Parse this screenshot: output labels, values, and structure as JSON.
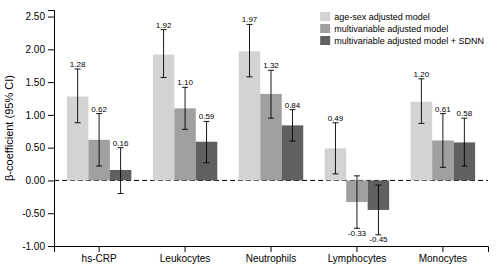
{
  "chart_data": {
    "type": "bar",
    "categories": [
      "hs-CRP",
      "Leukocytes",
      "Neutrophils",
      "Lymphocytes",
      "Monocytes"
    ],
    "series": [
      {
        "name": "age-sex adjusted model",
        "color": "#d3d3d3",
        "values": [
          1.28,
          1.92,
          1.97,
          0.49,
          1.2
        ],
        "value_labels": [
          "1.28",
          "1.92",
          "1.97",
          "0.49",
          "1.20"
        ],
        "ci_lower": [
          0.88,
          1.57,
          1.58,
          0.1,
          0.87
        ],
        "ci_upper": [
          1.7,
          2.3,
          2.38,
          0.88,
          1.55
        ]
      },
      {
        "name": "multivariable adjusted model",
        "color": "#a0a0a0",
        "values": [
          0.62,
          1.1,
          1.32,
          -0.33,
          0.61
        ],
        "value_labels": [
          "0.62",
          "1.10",
          "1.32",
          "-0.33",
          "0.61"
        ],
        "ci_lower": [
          0.22,
          0.78,
          0.95,
          -0.73,
          0.2
        ],
        "ci_upper": [
          1.02,
          1.42,
          1.68,
          0.07,
          1.02
        ]
      },
      {
        "name": "multivariable adjusted model + SDNN",
        "color": "#606060",
        "values": [
          0.16,
          0.59,
          0.84,
          -0.45,
          0.58
        ],
        "value_labels": [
          "0.16",
          "0.59",
          "0.84",
          "-0.45",
          "0.58"
        ],
        "ci_lower": [
          -0.2,
          0.27,
          0.6,
          -0.83,
          0.22
        ],
        "ci_upper": [
          0.5,
          0.9,
          1.08,
          -0.07,
          0.95
        ]
      }
    ],
    "y_label": "β-coefficient (95% CI)",
    "ylim": [
      -1.0,
      2.6
    ],
    "yticks": [
      {
        "value": -1.0,
        "label": "-1.00"
      },
      {
        "value": -0.5,
        "label": "-0.50"
      },
      {
        "value": 0.0,
        "label": "0.00"
      },
      {
        "value": 0.5,
        "label": "0.50"
      },
      {
        "value": 1.0,
        "label": "1.00"
      },
      {
        "value": 1.5,
        "label": "1.50"
      },
      {
        "value": 2.0,
        "label": "2.00"
      },
      {
        "value": 2.5,
        "label": "2.50"
      }
    ],
    "data_labels": true,
    "legend": "upper right",
    "grid": false
  }
}
